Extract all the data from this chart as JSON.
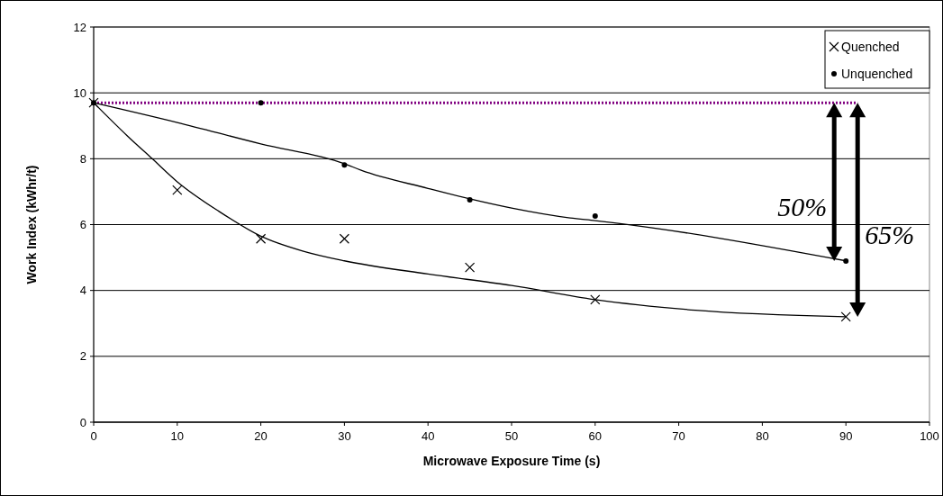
{
  "chart_data": {
    "type": "scatter",
    "xlabel": "Microwave Exposure Time (s)",
    "ylabel": "Work Index (kWhr/t)",
    "xlim": [
      0,
      100
    ],
    "xticks": [
      0,
      10,
      20,
      30,
      40,
      50,
      60,
      70,
      80,
      90,
      100
    ],
    "ylim": [
      0,
      12
    ],
    "yticks": [
      0,
      2,
      4,
      6,
      8,
      10,
      12
    ],
    "grid": "y",
    "legend": "top right",
    "series": [
      {
        "name": "Quenched",
        "marker": "cross",
        "color": "#000000",
        "x": [
          0,
          10,
          20,
          30,
          45,
          60,
          90
        ],
        "values": [
          9.7,
          7.05,
          5.57,
          5.57,
          4.7,
          3.72,
          3.2
        ]
      },
      {
        "name": "Unquenched",
        "marker": "circle",
        "color": "#000000",
        "x": [
          0,
          20,
          30,
          45,
          60,
          90
        ],
        "values": [
          9.7,
          9.7,
          7.81,
          6.75,
          6.26,
          4.89
        ]
      },
      {
        "type": "line",
        "color": "#000000",
        "x": [
          0,
          4,
          7,
          10,
          15,
          20,
          25,
          30,
          40,
          50,
          60,
          72,
          90
        ],
        "values": [
          9.7,
          8.7,
          8.0,
          7.3,
          6.4,
          5.65,
          5.2,
          4.9,
          4.5,
          4.15,
          3.72,
          3.4,
          3.2
        ]
      },
      {
        "type": "line",
        "color": "#000000",
        "x": [
          0,
          10,
          20,
          30,
          32,
          40,
          45,
          50,
          57,
          60,
          90
        ],
        "values": [
          9.7,
          9.1,
          8.45,
          7.85,
          7.65,
          7.1,
          6.78,
          6.5,
          6.2,
          6.12,
          4.9
        ]
      }
    ],
    "ref_lines": [
      {
        "axis": "y",
        "value": 9.7,
        "color": "#800080",
        "line_style": "dotted"
      }
    ],
    "annotations": [
      "50%",
      "65%"
    ]
  }
}
